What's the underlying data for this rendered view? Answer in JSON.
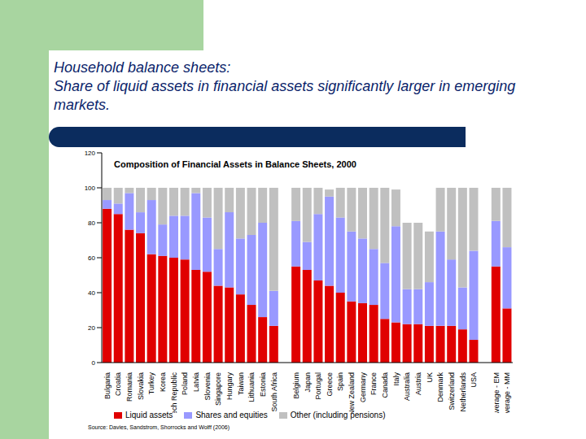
{
  "slide": {
    "title": "Household balance sheets:",
    "subtitle": "Share of liquid assets in financial assets significantly larger in emerging markets."
  },
  "chart_data": {
    "type": "bar",
    "stacked": true,
    "title": "Composition of Financial Assets in Balance Sheets, 2000",
    "source": "Source: Davies, Sandstrom, Shorrocks and Wolff (2006)",
    "categories": [
      "Bulgaria",
      "Croatia",
      "Romania",
      "Slovakia",
      "Turkey",
      "Korea",
      "Czech Republic",
      "Poland",
      "Latvia",
      "Slovenia",
      "Singapore",
      "Hungary",
      "Taiwan",
      "Lithuania",
      "Estonia",
      "South Africa",
      null,
      "Belgium",
      "Japan",
      "Portugal",
      "Greece",
      "Spain",
      "New Zealand",
      "Germany",
      "France",
      "Canada",
      "Italy",
      "Australia",
      "Austria",
      "UK",
      "Denmark",
      "Switzerland",
      "Netherlands",
      "USA",
      null,
      "Average - EM",
      "Average - MM"
    ],
    "series": [
      {
        "name": "Liquid assets",
        "color": "#e00000",
        "values": [
          88,
          85,
          76,
          74,
          62,
          61,
          60,
          59,
          53,
          52,
          44,
          43,
          39,
          33,
          26,
          21,
          null,
          55,
          53,
          47,
          44,
          40,
          35,
          34,
          33,
          25,
          23,
          22,
          22,
          21,
          21,
          21,
          19,
          13,
          null,
          55,
          31
        ]
      },
      {
        "name": "Shares and equities",
        "color": "#9999ff",
        "values": [
          5,
          6,
          21,
          12,
          31,
          18,
          24,
          25,
          44,
          31,
          21,
          43,
          32,
          40,
          54,
          20,
          null,
          26,
          16,
          38,
          51,
          43,
          40,
          37,
          32,
          32,
          55,
          20,
          20,
          25,
          54,
          38,
          24,
          51,
          null,
          26,
          35
        ]
      },
      {
        "name": "Other (including pensions)",
        "color": "#c0c0c0",
        "values": [
          7,
          9,
          3,
          14,
          7,
          21,
          16,
          16,
          3,
          17,
          35,
          14,
          29,
          27,
          20,
          59,
          null,
          19,
          31,
          15,
          4,
          17,
          25,
          29,
          35,
          43,
          21,
          38,
          38,
          29,
          25,
          41,
          57,
          36,
          null,
          19,
          34
        ]
      }
    ],
    "ylim": [
      0,
      120
    ],
    "yticks": [
      0,
      20,
      40,
      60,
      80,
      100,
      120
    ],
    "grid": false,
    "legend": "bottom"
  }
}
